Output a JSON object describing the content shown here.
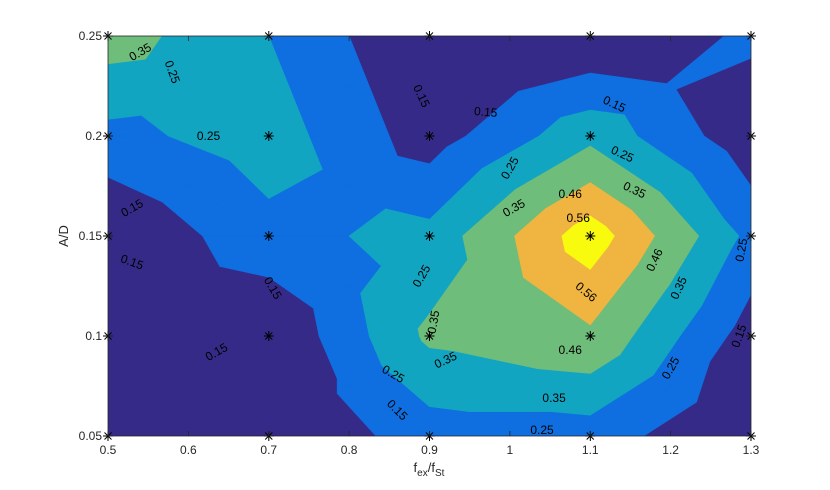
{
  "chart_data": {
    "type": "contour",
    "xlabel": {
      "base": "f",
      "base_sub": "ex",
      "slash": "/",
      "base2": "f",
      "base2_sub": "St"
    },
    "ylabel": "A/D",
    "xlim": [
      0.5,
      1.3
    ],
    "ylim": [
      0.05,
      0.25
    ],
    "xticks": [
      0.5,
      0.6,
      0.7,
      0.8,
      0.9,
      1,
      1.1,
      1.2,
      1.3
    ],
    "xtick_labels": [
      "0.5",
      "0.6",
      "0.7",
      "0.8",
      "0.9",
      "1",
      "1.1",
      "1.2",
      "1.3"
    ],
    "yticks": [
      0.05,
      0.1,
      0.15,
      0.2,
      0.25
    ],
    "ytick_labels": [
      "0.05",
      "0.1",
      "0.15",
      "0.2",
      "0.25"
    ],
    "x": [
      0.5,
      0.7,
      0.9,
      1.1,
      1.3
    ],
    "y": [
      0.05,
      0.1,
      0.15,
      0.2,
      0.25
    ],
    "z": [
      [
        0.05,
        0.05,
        0.2,
        0.2,
        0.05
      ],
      [
        0.1,
        0.05,
        0.37,
        0.44,
        0.1
      ],
      [
        0.05,
        0.22,
        0.28,
        0.62,
        0.22
      ],
      [
        0.22,
        0.3,
        0.1,
        0.32,
        0.08
      ],
      [
        0.4,
        0.25,
        0.05,
        0.05,
        0.17
      ]
    ],
    "levels": [
      0.15,
      0.25,
      0.35,
      0.46,
      0.56
    ],
    "colors": [
      "#352a87",
      "#0f6fe0",
      "#12a5c1",
      "#6fbd7a",
      "#f0b441",
      "#f9fb0e"
    ],
    "colorbar": false,
    "grid": false,
    "marker": "*",
    "contour_labels": [
      {
        "text": "0.35",
        "x": 0.54,
        "y": 0.242,
        "angle": -30
      },
      {
        "text": "0.25",
        "x": 0.58,
        "y": 0.232,
        "angle": 70
      },
      {
        "text": "0.25",
        "x": 0.625,
        "y": 0.2,
        "angle": 0
      },
      {
        "text": "0.15",
        "x": 0.89,
        "y": 0.22,
        "angle": 65
      },
      {
        "text": "0.15",
        "x": 0.97,
        "y": 0.212,
        "angle": 5
      },
      {
        "text": "0.15",
        "x": 1.13,
        "y": 0.216,
        "angle": 25
      },
      {
        "text": "0.25",
        "x": 1.14,
        "y": 0.191,
        "angle": 25
      },
      {
        "text": "0.35",
        "x": 1.155,
        "y": 0.173,
        "angle": 25
      },
      {
        "text": "0.46",
        "x": 1.075,
        "y": 0.171,
        "angle": 0
      },
      {
        "text": "0.56",
        "x": 1.085,
        "y": 0.159,
        "angle": 0
      },
      {
        "text": "0.25",
        "x": 1.0,
        "y": 0.184,
        "angle": -60
      },
      {
        "text": "0.35",
        "x": 1.005,
        "y": 0.164,
        "angle": -30
      },
      {
        "text": "0.56",
        "x": 1.095,
        "y": 0.122,
        "angle": 40
      },
      {
        "text": "0.46",
        "x": 1.18,
        "y": 0.138,
        "angle": -65
      },
      {
        "text": "0.35",
        "x": 1.21,
        "y": 0.124,
        "angle": -65
      },
      {
        "text": "0.25",
        "x": 1.288,
        "y": 0.143,
        "angle": -80
      },
      {
        "text": "0.15",
        "x": 1.285,
        "y": 0.1,
        "angle": -70
      },
      {
        "text": "0.25",
        "x": 0.89,
        "y": 0.13,
        "angle": -60
      },
      {
        "text": "0.35",
        "x": 0.905,
        "y": 0.107,
        "angle": -80
      },
      {
        "text": "0.35",
        "x": 0.92,
        "y": 0.088,
        "angle": -25
      },
      {
        "text": "0.46",
        "x": 1.075,
        "y": 0.093,
        "angle": 0
      },
      {
        "text": "0.35",
        "x": 1.055,
        "y": 0.069,
        "angle": 0
      },
      {
        "text": "0.25",
        "x": 1.04,
        "y": 0.053,
        "angle": 0
      },
      {
        "text": "0.25",
        "x": 1.2,
        "y": 0.084,
        "angle": -60
      },
      {
        "text": "0.25",
        "x": 0.855,
        "y": 0.081,
        "angle": 30
      },
      {
        "text": "0.15",
        "x": 0.86,
        "y": 0.063,
        "angle": 45
      },
      {
        "text": "0.15",
        "x": 0.635,
        "y": 0.092,
        "angle": -30
      },
      {
        "text": "0.15",
        "x": 0.705,
        "y": 0.124,
        "angle": 60
      },
      {
        "text": "0.15",
        "x": 0.53,
        "y": 0.164,
        "angle": -30
      },
      {
        "text": "0.15",
        "x": 0.53,
        "y": 0.137,
        "angle": 20
      }
    ]
  }
}
